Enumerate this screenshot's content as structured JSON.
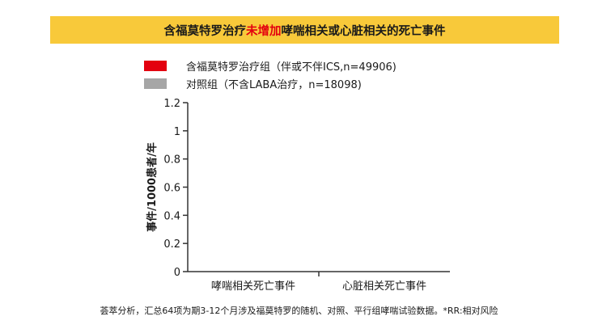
{
  "title": {
    "prefix": "含福莫特罗治疗",
    "highlight": "未增加",
    "suffix": "哮喘相关或心脏相关的死亡事件"
  },
  "colors": {
    "title_background": "#f8c93a",
    "highlight_text": "#e3000f",
    "series_formoterol": "#e3000f",
    "series_control": "#a6a6a6"
  },
  "legend": [
    {
      "label": "含福莫特罗治疗组（伴或不伴ICS,n=49906)",
      "color": "#e3000f"
    },
    {
      "label": "对照组（不含LABA治疗，n=18098)",
      "color": "#a6a6a6"
    }
  ],
  "chart_data": {
    "type": "bar",
    "ylabel": "事件/1000患者/年",
    "ylim": [
      0,
      1.2
    ],
    "yticks": [
      "0",
      "0.2",
      "0.4",
      "0.6",
      "0.8",
      "1",
      "1.2"
    ],
    "categories": [
      "哮喘相关死亡事件",
      "心脏相关死亡事件"
    ],
    "series": [
      {
        "name": "含福莫特罗治疗组（伴或不伴ICS,n=49906)",
        "values": [
          0,
          0
        ]
      },
      {
        "name": "对照组（不含LABA治疗，n=18098)",
        "values": [
          0,
          0
        ]
      }
    ]
  },
  "footnote": "荟萃分析，汇总64项为期3-12个月涉及福莫特罗的随机、对照、平行组哮喘试验数据。*RR:相对风险"
}
